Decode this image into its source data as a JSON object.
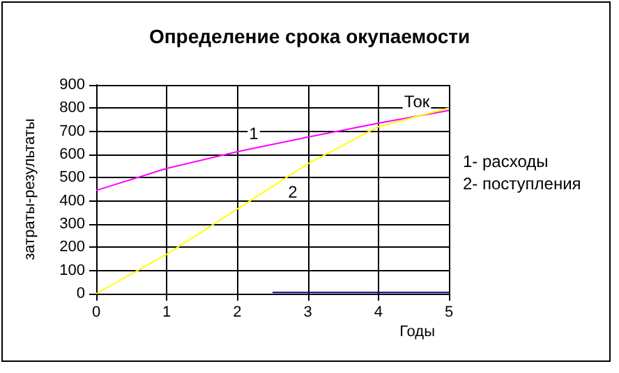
{
  "chart_data": {
    "type": "line",
    "title": "Определение срока окупаемости",
    "xlabel": "Годы",
    "ylabel": "затраты-результаты",
    "x": [
      0,
      1,
      2,
      3,
      4,
      5
    ],
    "series": [
      {
        "color": "#ff00ff",
        "values": [
          445,
          540,
          612,
          675,
          735,
          790
        ]
      },
      {
        "color": "#ffff00",
        "values": [
          0,
          170,
          365,
          560,
          720,
          800
        ]
      },
      {
        "color": "#000080",
        "x": [
          2.5,
          5
        ],
        "values": [
          5,
          5
        ]
      }
    ],
    "annotations": [
      "1",
      "2",
      "Ток",
      "1- расходы",
      "2- поступления"
    ],
    "xlim": [
      0,
      5
    ],
    "xticks": [
      0,
      1,
      2,
      3,
      4,
      5
    ],
    "ylim": [
      0,
      900
    ],
    "yticks": [
      0,
      100,
      200,
      300,
      400,
      500,
      600,
      700,
      800,
      900
    ],
    "grid": true,
    "marker": "none",
    "line_style": "solid"
  }
}
